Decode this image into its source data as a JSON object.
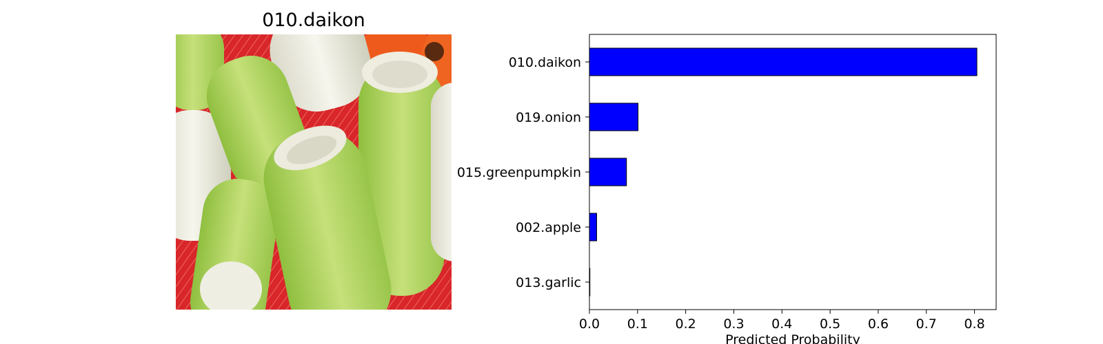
{
  "image_panel": {
    "title": "010.daikon",
    "subject": "daikon radish pieces on red mesh",
    "colors": {
      "background": "#d8262a",
      "radish_green": "#a9d35b",
      "radish_white": "#f3f1e6",
      "carrot": "#ee5a1c"
    }
  },
  "chart_data": {
    "type": "bar",
    "orientation": "horizontal",
    "categories": [
      "010.daikon",
      "019.onion",
      "015.greenpumpkin",
      "002.apple",
      "013.garlic"
    ],
    "values": [
      0.805,
      0.101,
      0.077,
      0.015,
      0.001
    ],
    "xlabel": "Predicted Probability",
    "ylabel": "",
    "title": "",
    "xlim": [
      0.0,
      0.845
    ],
    "xticks": [
      "0.0",
      "0.1",
      "0.2",
      "0.3",
      "0.4",
      "0.5",
      "0.6",
      "0.7",
      "0.8"
    ],
    "bar_color": "#0000ff",
    "edge_color": "#000000",
    "grid": false,
    "legend": "none"
  }
}
